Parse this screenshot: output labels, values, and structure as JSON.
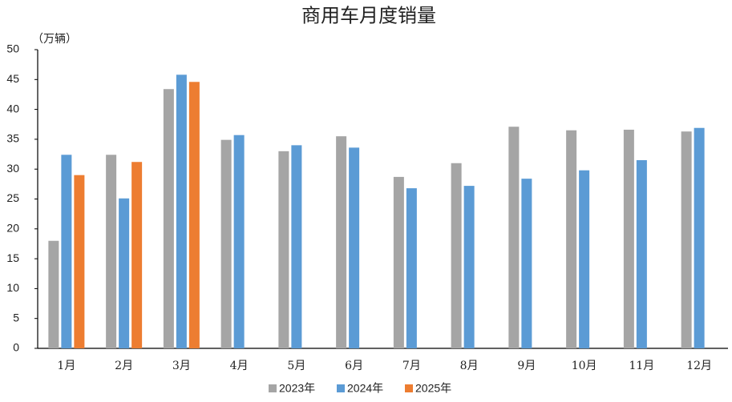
{
  "chart_data": {
    "type": "bar",
    "title": "商用车月度销量",
    "y_label": "（万辆）",
    "categories": [
      "1月",
      "2月",
      "3月",
      "4月",
      "5月",
      "6月",
      "7月",
      "8月",
      "9月",
      "10月",
      "11月",
      "12月"
    ],
    "series": [
      {
        "name": "2023年",
        "color": "#a5a5a5",
        "values": [
          18.0,
          32.4,
          43.4,
          34.9,
          33.0,
          35.5,
          28.7,
          31.0,
          37.1,
          36.5,
          36.6,
          36.3
        ]
      },
      {
        "name": "2024年",
        "color": "#5b9bd5",
        "values": [
          32.4,
          25.1,
          45.8,
          35.7,
          34.0,
          33.6,
          26.8,
          27.2,
          28.4,
          29.8,
          31.5,
          36.9
        ]
      },
      {
        "name": "2025年",
        "color": "#ed7d31",
        "values": [
          29.0,
          31.2,
          44.6,
          null,
          null,
          null,
          null,
          null,
          null,
          null,
          null,
          null
        ]
      }
    ],
    "ylim": [
      0,
      50
    ],
    "yticks": [
      0,
      5,
      10,
      15,
      20,
      25,
      30,
      35,
      40,
      45,
      50
    ],
    "grid": false,
    "legend": "bottom"
  }
}
